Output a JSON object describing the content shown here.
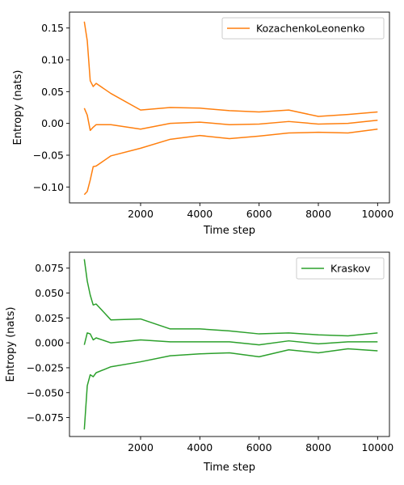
{
  "chart_data": [
    {
      "type": "line",
      "xlabel": "Time step",
      "ylabel": "Entropy (nats)",
      "xlim": [
        -400,
        10400
      ],
      "ylim": [
        -0.125,
        0.175
      ],
      "xticks": [
        2000,
        4000,
        6000,
        8000,
        10000
      ],
      "xtick_labels": [
        "2000",
        "4000",
        "6000",
        "8000",
        "10000"
      ],
      "yticks": [
        -0.1,
        -0.05,
        0.0,
        0.05,
        0.1,
        0.15
      ],
      "ytick_labels": [
        "−0.10",
        "−0.05",
        "0.00",
        "0.05",
        "0.10",
        "0.15"
      ],
      "legend": {
        "label": "KozachenkoLeonenko",
        "placement": "top-right"
      },
      "color": "#ff7f0e",
      "x": [
        100,
        200,
        300,
        400,
        500,
        1000,
        2000,
        3000,
        4000,
        5000,
        6000,
        7000,
        8000,
        9000,
        10000
      ],
      "series": [
        {
          "values": [
            0.16,
            0.13,
            0.067,
            0.058,
            0.063,
            0.047,
            0.021,
            0.025,
            0.024,
            0.02,
            0.018,
            0.021,
            0.011,
            0.014,
            0.018
          ]
        },
        {
          "values": [
            0.024,
            0.013,
            -0.011,
            -0.006,
            -0.002,
            -0.002,
            -0.009,
            0.0,
            0.002,
            -0.002,
            -0.001,
            0.003,
            -0.001,
            0.0,
            0.005
          ]
        },
        {
          "values": [
            -0.112,
            -0.107,
            -0.089,
            -0.068,
            -0.067,
            -0.051,
            -0.039,
            -0.025,
            -0.019,
            -0.024,
            -0.02,
            -0.015,
            -0.014,
            -0.015,
            -0.009
          ]
        }
      ]
    },
    {
      "type": "line",
      "xlabel": "Time step",
      "ylabel": "Entropy (nats)",
      "xlim": [
        -400,
        10400
      ],
      "ylim": [
        -0.094,
        0.091
      ],
      "xticks": [
        2000,
        4000,
        6000,
        8000,
        10000
      ],
      "xtick_labels": [
        "2000",
        "4000",
        "6000",
        "8000",
        "10000"
      ],
      "yticks": [
        -0.075,
        -0.05,
        -0.025,
        0.0,
        0.025,
        0.05,
        0.075
      ],
      "ytick_labels": [
        "−0.075",
        "−0.050",
        "−0.025",
        "0.000",
        "0.025",
        "0.050",
        "0.075"
      ],
      "legend": {
        "label": "Kraskov",
        "placement": "top-right"
      },
      "color": "#2ca02c",
      "x": [
        100,
        200,
        300,
        400,
        500,
        1000,
        2000,
        3000,
        4000,
        5000,
        6000,
        7000,
        8000,
        9000,
        10000
      ],
      "series": [
        {
          "values": [
            0.084,
            0.062,
            0.048,
            0.038,
            0.039,
            0.023,
            0.024,
            0.014,
            0.014,
            0.012,
            0.009,
            0.01,
            0.008,
            0.007,
            0.01
          ]
        },
        {
          "values": [
            -0.002,
            0.01,
            0.009,
            0.003,
            0.005,
            0.0,
            0.003,
            0.001,
            0.001,
            0.001,
            -0.002,
            0.002,
            -0.001,
            0.001,
            0.001
          ]
        },
        {
          "values": [
            -0.087,
            -0.043,
            -0.032,
            -0.034,
            -0.03,
            -0.024,
            -0.019,
            -0.013,
            -0.011,
            -0.01,
            -0.014,
            -0.007,
            -0.01,
            -0.006,
            -0.008
          ]
        }
      ]
    }
  ]
}
